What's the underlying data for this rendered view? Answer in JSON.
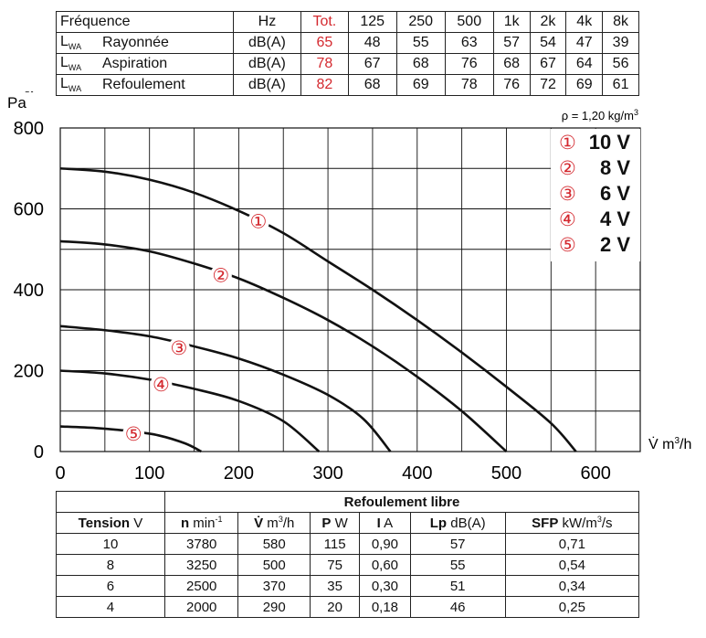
{
  "spec_table": {
    "header": [
      "Fréquence",
      "Hz",
      "Tot.",
      "125",
      "250",
      "500",
      "1k",
      "2k",
      "4k",
      "8k"
    ],
    "rows": [
      {
        "prefix": "L",
        "sub": "WA",
        "label": "Rayonnée",
        "unit": "dB(A)",
        "tot": "65",
        "values": [
          "48",
          "55",
          "63",
          "57",
          "54",
          "47",
          "39"
        ]
      },
      {
        "prefix": "L",
        "sub": "WA",
        "label": "Aspiration",
        "unit": "dB(A)",
        "tot": "78",
        "values": [
          "67",
          "68",
          "76",
          "68",
          "67",
          "64",
          "56"
        ]
      },
      {
        "prefix": "L",
        "sub": "WA",
        "label": "Refoulement",
        "unit": "dB(A)",
        "tot": "82",
        "values": [
          "68",
          "69",
          "78",
          "76",
          "72",
          "69",
          "61"
        ]
      }
    ]
  },
  "chart_data": {
    "type": "line",
    "ylabel_main": "Δp",
    "ylabel_sub": "st",
    "ylabel_unit": "Pa",
    "xlabel_main": "V̇ m",
    "xlabel_sup": "3",
    "xlabel_end": "/h",
    "density_prefix": "ρ = 1,20 kg/m",
    "density_sup": "3",
    "xlim": [
      0,
      650
    ],
    "ylim": [
      0,
      800
    ],
    "xticks": [
      0,
      100,
      200,
      300,
      400,
      500,
      600
    ],
    "yticks": [
      0,
      200,
      400,
      600,
      800
    ],
    "grid": true,
    "legend_position": "top-right",
    "series": [
      {
        "name": "10 V",
        "marker": "①",
        "label_at": [
          222,
          568
        ],
        "points": [
          [
            0,
            700
          ],
          [
            50,
            692
          ],
          [
            100,
            672
          ],
          [
            150,
            640
          ],
          [
            200,
            595
          ],
          [
            250,
            540
          ],
          [
            300,
            470
          ],
          [
            350,
            400
          ],
          [
            400,
            325
          ],
          [
            450,
            245
          ],
          [
            500,
            160
          ],
          [
            550,
            70
          ],
          [
            578,
            0
          ]
        ]
      },
      {
        "name": "8 V",
        "marker": "②",
        "label_at": [
          180,
          435
        ],
        "points": [
          [
            0,
            520
          ],
          [
            50,
            512
          ],
          [
            100,
            495
          ],
          [
            150,
            465
          ],
          [
            200,
            428
          ],
          [
            250,
            380
          ],
          [
            300,
            325
          ],
          [
            350,
            260
          ],
          [
            400,
            185
          ],
          [
            450,
            100
          ],
          [
            500,
            0
          ]
        ]
      },
      {
        "name": "6 V",
        "marker": "③",
        "label_at": [
          133,
          255
        ],
        "points": [
          [
            0,
            310
          ],
          [
            50,
            300
          ],
          [
            100,
            285
          ],
          [
            150,
            260
          ],
          [
            200,
            230
          ],
          [
            250,
            190
          ],
          [
            300,
            140
          ],
          [
            340,
            80
          ],
          [
            370,
            0
          ]
        ]
      },
      {
        "name": "4 V",
        "marker": "④",
        "label_at": [
          113,
          165
        ],
        "points": [
          [
            0,
            200
          ],
          [
            50,
            193
          ],
          [
            100,
            178
          ],
          [
            150,
            155
          ],
          [
            200,
            125
          ],
          [
            250,
            75
          ],
          [
            290,
            0
          ]
        ]
      },
      {
        "name": "2 V",
        "marker": "⑤",
        "label_at": [
          82,
          43
        ],
        "points": [
          [
            0,
            62
          ],
          [
            40,
            58
          ],
          [
            80,
            50
          ],
          [
            110,
            40
          ],
          [
            140,
            20
          ],
          [
            158,
            0
          ]
        ]
      }
    ]
  },
  "perf_table": {
    "title": "Refoulement libre",
    "headers": [
      {
        "bold": "Tension",
        "rest": " V"
      },
      {
        "bold": "n",
        "rest": " min",
        "sup": "-1"
      },
      {
        "bold": "V̇",
        "rest": " m",
        "sup": "3",
        "rest2": "/h"
      },
      {
        "bold": "P",
        "rest": " W"
      },
      {
        "bold": "I",
        "rest": " A"
      },
      {
        "bold": "Lp",
        "rest": " dB(A)"
      },
      {
        "bold": "SFP",
        "rest": " kW/m",
        "sup": "3",
        "rest2": "/s"
      }
    ],
    "rows": [
      [
        "10",
        "3780",
        "580",
        "115",
        "0,90",
        "57",
        "0,71"
      ],
      [
        "8",
        "3250",
        "500",
        "75",
        "0,60",
        "55",
        "0,54"
      ],
      [
        "6",
        "2500",
        "370",
        "35",
        "0,30",
        "51",
        "0,34"
      ],
      [
        "4",
        "2000",
        "290",
        "20",
        "0,18",
        "46",
        "0,25"
      ]
    ]
  }
}
